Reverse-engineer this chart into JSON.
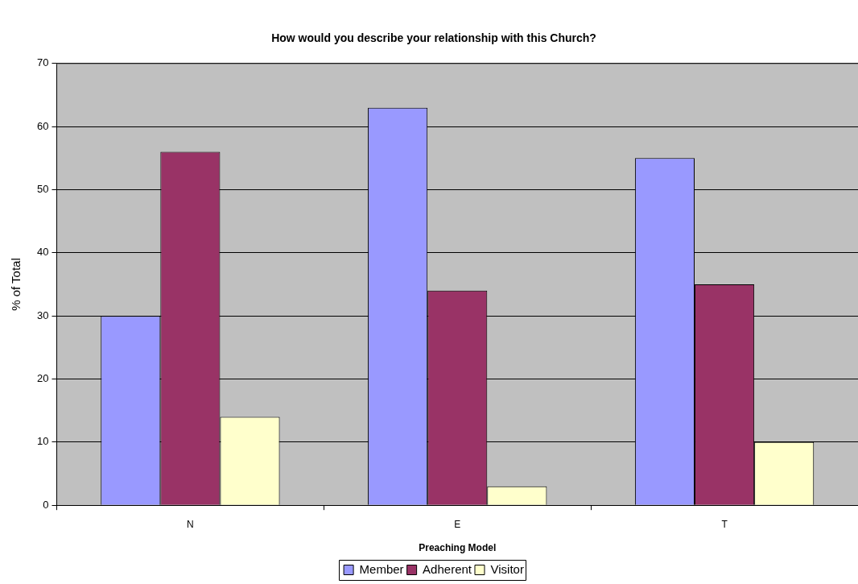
{
  "chart_data": {
    "type": "bar",
    "title": "How would you describe your relationship with this Church?",
    "xlabel": "Preaching Model",
    "ylabel": "% of Total",
    "categories": [
      "N",
      "E",
      "T"
    ],
    "series": [
      {
        "name": "Member",
        "color": "#9999ff",
        "values": [
          30,
          63,
          55
        ]
      },
      {
        "name": "Adherent",
        "color": "#993366",
        "values": [
          56,
          34,
          35
        ]
      },
      {
        "name": "Visitor",
        "color": "#ffffcc",
        "values": [
          14,
          3,
          10
        ]
      }
    ],
    "ylim": [
      0,
      70
    ],
    "yticks": [
      0,
      10,
      20,
      30,
      40,
      50,
      60,
      70
    ],
    "grid": "y",
    "legend": "bottom"
  }
}
